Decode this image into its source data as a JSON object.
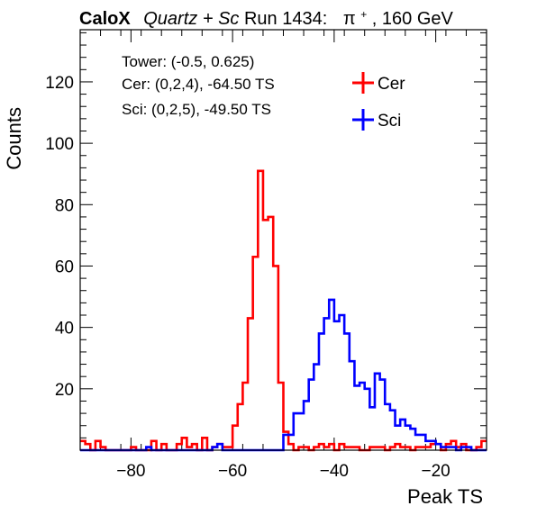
{
  "header": {
    "brand": "CaloX",
    "detector": "Quartz + Sc",
    "run": "Run 1434:",
    "particle": "π",
    "particle_charge": "+",
    "energy": ", 160 GeV"
  },
  "info_lines": [
    "Tower: (-0.5, 0.625)",
    "Cer: (0,2,4), -64.50 TS",
    "Sci: (0,2,5), -49.50 TS"
  ],
  "chart_data": {
    "type": "histogram",
    "xlabel": "Peak TS",
    "ylabel": "Counts",
    "xlim": [
      -90,
      -10
    ],
    "ylim": [
      0,
      137
    ],
    "x_ticks": [
      -80,
      -60,
      -40,
      -20
    ],
    "y_ticks": [
      20,
      40,
      60,
      80,
      100,
      120
    ],
    "bin_width": 1,
    "legend_position": "top-right",
    "grid": false,
    "series": [
      {
        "name": "Cer",
        "color": "#ff0000",
        "values": [
          3,
          2,
          0,
          3,
          1,
          0,
          0,
          0,
          0,
          0,
          1,
          0,
          0,
          0,
          3,
          0,
          2,
          0,
          0,
          2,
          4,
          1,
          2,
          0,
          4,
          0,
          1,
          2,
          1,
          1,
          8,
          15,
          22,
          43,
          63,
          91,
          75,
          76,
          60,
          22,
          6,
          2,
          0,
          1,
          1,
          0,
          1,
          2,
          1,
          2,
          0,
          2,
          1,
          1,
          1,
          0,
          0,
          1,
          1,
          1,
          0,
          1,
          2,
          1,
          1,
          0,
          1,
          1,
          1,
          2,
          2,
          0,
          2,
          3,
          1,
          2,
          0,
          0,
          1,
          3
        ]
      },
      {
        "name": "Sci",
        "color": "#0000ff",
        "values": [
          0,
          0,
          0,
          0,
          0,
          0,
          0,
          0,
          0,
          0,
          0,
          0,
          0,
          1,
          0,
          0,
          0,
          0,
          0,
          0,
          0,
          0,
          0,
          0,
          0,
          0,
          1,
          2,
          0,
          0,
          0,
          0,
          0,
          0,
          0,
          0,
          0,
          0,
          0,
          0,
          5,
          5,
          12,
          12,
          16,
          23,
          28,
          38,
          43,
          49,
          42,
          44,
          38,
          29,
          21,
          22,
          20,
          14,
          25,
          23,
          15,
          13,
          8,
          10,
          8,
          7,
          5,
          5,
          3,
          3,
          2,
          1,
          1,
          1,
          0,
          1,
          1,
          0,
          0,
          0
        ]
      }
    ]
  }
}
